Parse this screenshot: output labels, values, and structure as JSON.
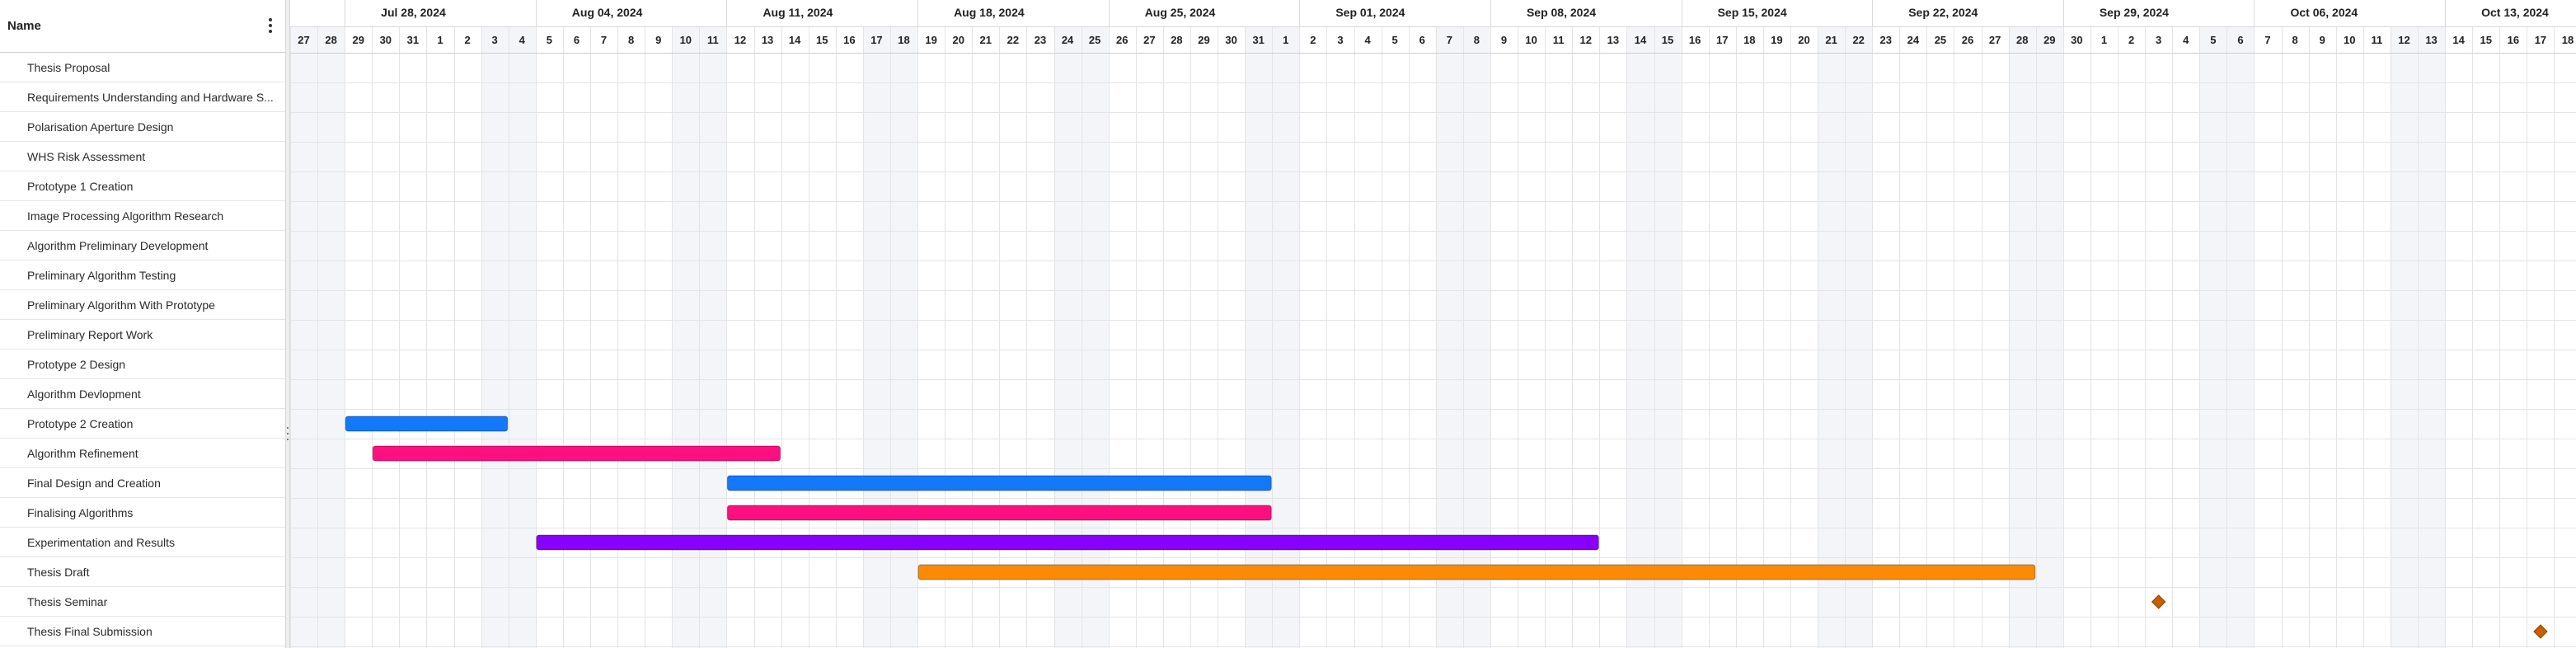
{
  "header": {
    "name_label": "Name"
  },
  "tasks": [
    {
      "name": "Thesis Proposal"
    },
    {
      "name": "Requirements Understanding and Hardware S..."
    },
    {
      "name": "Polarisation Aperture Design"
    },
    {
      "name": "WHS Risk Assessment"
    },
    {
      "name": "Prototype 1 Creation"
    },
    {
      "name": "Image Processing Algorithm Research"
    },
    {
      "name": "Algorithm Preliminary Development"
    },
    {
      "name": "Preliminary Algorithm Testing"
    },
    {
      "name": "Preliminary Algorithm With Prototype"
    },
    {
      "name": "Preliminary Report Work"
    },
    {
      "name": "Prototype 2 Design"
    },
    {
      "name": "Algorithm Devlopment"
    },
    {
      "name": "Prototype 2 Creation",
      "start": "2024-07-29",
      "end": "2024-08-03",
      "color": "#1478fb"
    },
    {
      "name": "Algorithm Refinement",
      "start": "2024-07-30",
      "end": "2024-08-13",
      "color": "#fd0f80"
    },
    {
      "name": "Final Design and Creation",
      "start": "2024-08-12",
      "end": "2024-08-31",
      "color": "#1478fb"
    },
    {
      "name": "Finalising Algorithms",
      "start": "2024-08-12",
      "end": "2024-08-31",
      "color": "#fd0f80"
    },
    {
      "name": "Experimentation and Results",
      "start": "2024-08-05",
      "end": "2024-09-12",
      "color": "#8800fb"
    },
    {
      "name": "Thesis Draft",
      "start": "2024-08-19",
      "end": "2024-09-28",
      "color": "#fb8a07"
    },
    {
      "name": "Thesis Seminar",
      "milestone": "2024-10-03",
      "color": "#c75f00"
    },
    {
      "name": "Thesis Final Submission",
      "milestone": "2024-10-17",
      "color": "#c75f00"
    }
  ],
  "timeline": {
    "weeks": [
      "Jul 28, 2024",
      "Aug 04, 2024",
      "Aug 11, 2024",
      "Aug 18, 2024",
      "Aug 25, 2024",
      "Sep 01, 2024",
      "Sep 08, 2024",
      "Sep 15, 2024",
      "Sep 22, 2024",
      "Sep 29, 2024",
      "Oct 06, 2024",
      "Oct 13, 2024"
    ],
    "days": [
      "27",
      "28",
      "29",
      "30",
      "31",
      "1",
      "2",
      "3",
      "4",
      "5",
      "6",
      "7",
      "8",
      "9",
      "10",
      "11",
      "12",
      "13",
      "14",
      "15",
      "16",
      "17",
      "18",
      "19",
      "20",
      "21",
      "22",
      "23",
      "24",
      "25",
      "26",
      "27",
      "28",
      "29",
      "30",
      "31",
      "1",
      "2",
      "3",
      "4",
      "5",
      "6",
      "7",
      "8",
      "9",
      "10",
      "11",
      "12",
      "13",
      "14",
      "15",
      "16",
      "17",
      "18",
      "19",
      "20",
      "21",
      "22",
      "23",
      "24",
      "25",
      "26",
      "27",
      "28",
      "29",
      "30",
      "1",
      "2",
      "3",
      "4",
      "5",
      "6",
      "7",
      "8",
      "9",
      "10",
      "11",
      "12",
      "13",
      "14",
      "15",
      "16",
      "17",
      "18"
    ],
    "weekend_color": "#f3f5f8",
    "grid_color": "#e4e4e4"
  }
}
